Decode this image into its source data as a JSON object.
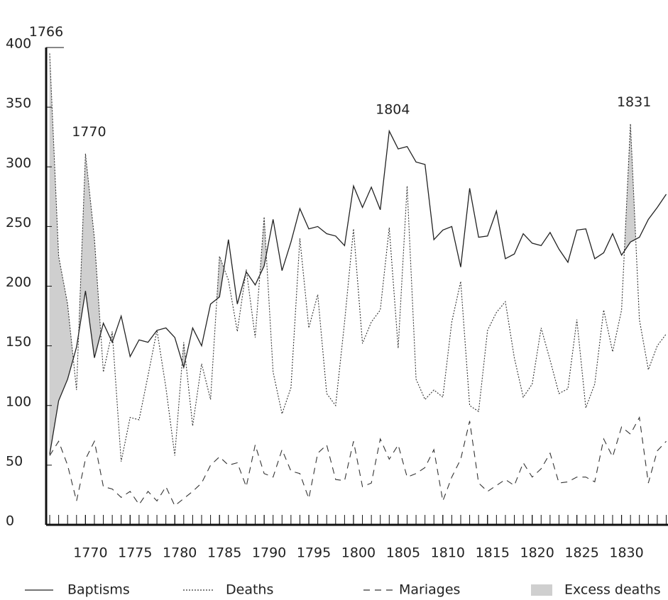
{
  "chart_data": {
    "type": "line",
    "x": [
      1766,
      1767,
      1768,
      1769,
      1770,
      1771,
      1772,
      1773,
      1774,
      1775,
      1776,
      1777,
      1778,
      1779,
      1780,
      1781,
      1782,
      1783,
      1784,
      1785,
      1786,
      1787,
      1788,
      1789,
      1790,
      1791,
      1792,
      1793,
      1794,
      1795,
      1796,
      1797,
      1798,
      1799,
      1800,
      1801,
      1802,
      1803,
      1804,
      1805,
      1806,
      1807,
      1808,
      1809,
      1810,
      1811,
      1812,
      1813,
      1814,
      1815,
      1816,
      1817,
      1818,
      1819,
      1820,
      1821,
      1822,
      1823,
      1824,
      1825,
      1826,
      1827,
      1828,
      1829,
      1830,
      1831,
      1832,
      1833,
      1834,
      1835
    ],
    "series": [
      {
        "name": "Baptisms",
        "color": "#222222",
        "style": "solid",
        "values": [
          59,
          104,
          122,
          149,
          196,
          140,
          169,
          153,
          175,
          141,
          155,
          153,
          163,
          165,
          157,
          132,
          165,
          150,
          185,
          191,
          239,
          185,
          212,
          201,
          217,
          256,
          213,
          237,
          265,
          248,
          250,
          244,
          242,
          234,
          284,
          266,
          283,
          264,
          330,
          315,
          317,
          304,
          302,
          239,
          247,
          250,
          216,
          282,
          241,
          242,
          263,
          223,
          227,
          244,
          236,
          234,
          245,
          231,
          220,
          247,
          248,
          223,
          228,
          244,
          226,
          237,
          241,
          256,
          266,
          277
        ]
      },
      {
        "name": "Deaths",
        "color": "#333333",
        "style": "dotted",
        "values": [
          395,
          225,
          185,
          113,
          311,
          240,
          128,
          162,
          53,
          90,
          88,
          125,
          163,
          115,
          58,
          153,
          83,
          135,
          105,
          225,
          205,
          162,
          214,
          157,
          258,
          128,
          93,
          115,
          240,
          165,
          193,
          110,
          100,
          170,
          248,
          152,
          170,
          180,
          249,
          148,
          284,
          122,
          105,
          113,
          107,
          170,
          204,
          100,
          95,
          163,
          178,
          187,
          140,
          107,
          118,
          165,
          138,
          110,
          114,
          172,
          98,
          118,
          180,
          145,
          180,
          336,
          172,
          130,
          150,
          160
        ]
      },
      {
        "name": "Mariages",
        "color": "#333333",
        "style": "dashed",
        "values": [
          58,
          70,
          50,
          20,
          55,
          70,
          32,
          30,
          23,
          28,
          17,
          28,
          20,
          32,
          16,
          22,
          28,
          35,
          50,
          57,
          50,
          52,
          32,
          67,
          43,
          40,
          63,
          45,
          43,
          22,
          60,
          67,
          38,
          37,
          70,
          32,
          35,
          72,
          55,
          67,
          40,
          43,
          48,
          63,
          20,
          40,
          55,
          87,
          35,
          28,
          33,
          38,
          33,
          52,
          40,
          47,
          60,
          35,
          36,
          40,
          40,
          36,
          72,
          57,
          82,
          76,
          90,
          35,
          62,
          70
        ]
      }
    ],
    "excess": {
      "name": "Excess deaths",
      "color": "#cfcfcf"
    },
    "annotations": [
      {
        "text": "1766",
        "x": 1766
      },
      {
        "text": "1770",
        "x": 1770
      },
      {
        "text": "1804",
        "x": 1804
      },
      {
        "text": "1831",
        "x": 1831
      }
    ],
    "xlim": [
      1765.6,
      1835.2
    ],
    "xticks": [
      1770,
      1775,
      1780,
      1785,
      1790,
      1795,
      1800,
      1805,
      1810,
      1815,
      1820,
      1825,
      1830
    ],
    "ylim": [
      0,
      400
    ],
    "yticks": [
      0,
      50,
      100,
      150,
      200,
      250,
      300,
      350,
      400
    ],
    "grid": false
  }
}
